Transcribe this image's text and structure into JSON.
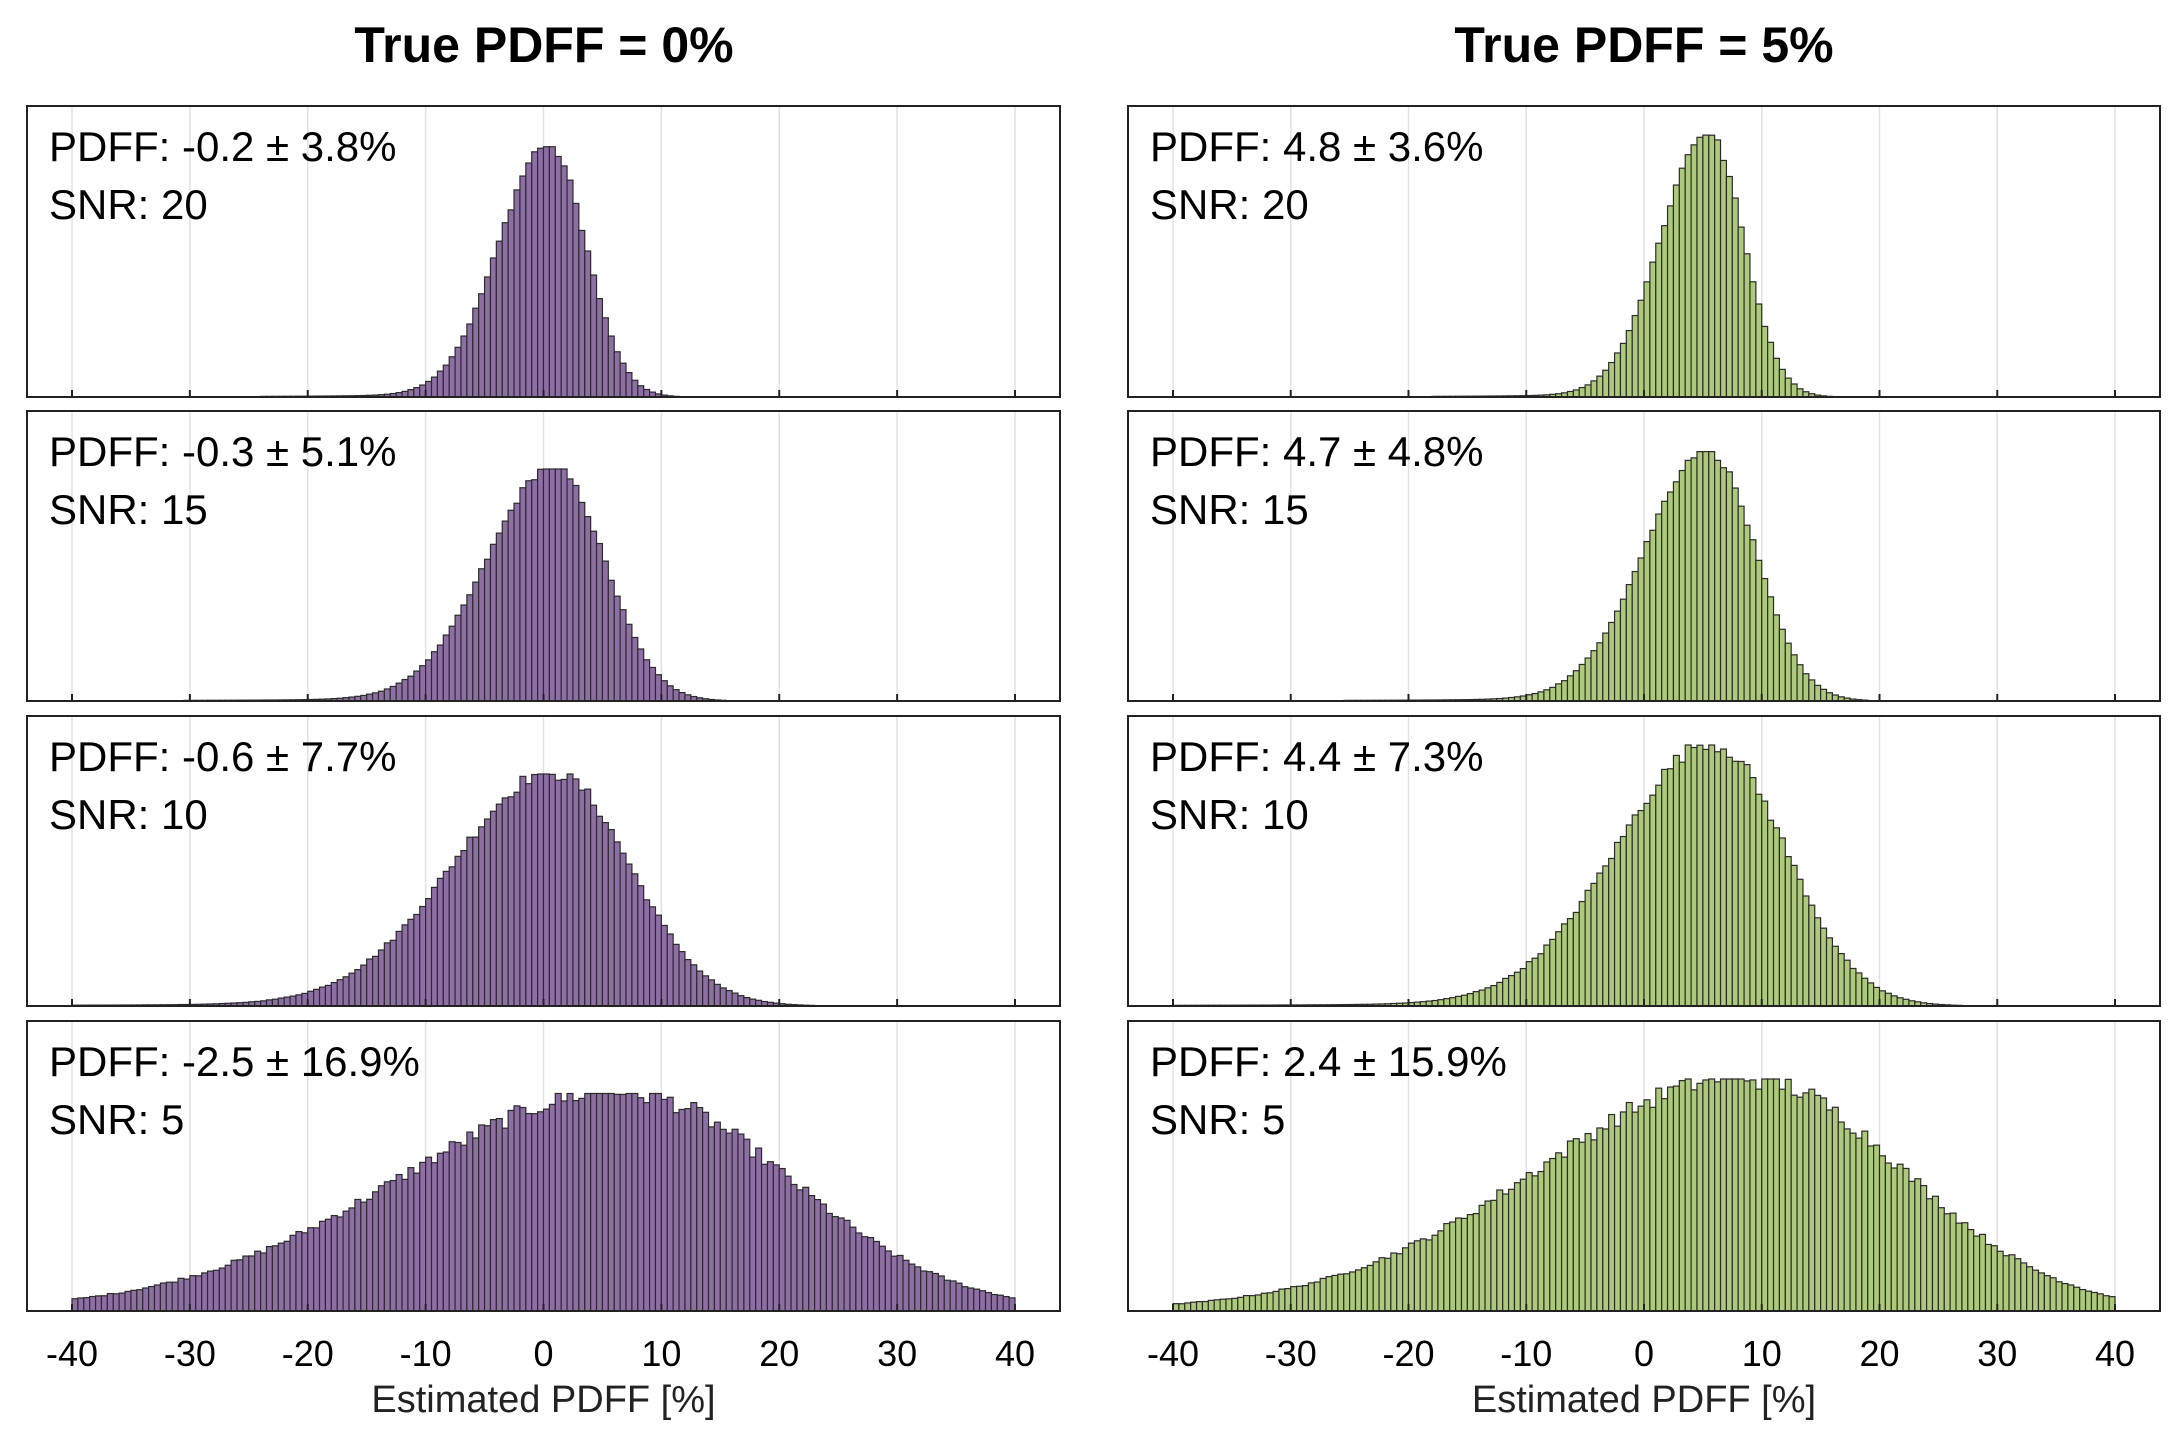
{
  "figure": {
    "xlabel": "Estimated PDFF [%]",
    "xticks": [
      -40,
      -30,
      -20,
      -10,
      0,
      10,
      20,
      30,
      40
    ],
    "xlim": [
      -44,
      44
    ],
    "bin_width": 0.5
  },
  "chart_data": [
    {
      "type": "bar",
      "title": "True PDFF = 0%",
      "color": "#8e6fa5",
      "panels": [
        {
          "stat_label": "PDFF: -0.2 ± 3.8%",
          "snr_label": "SNR: 20",
          "mean": -0.2,
          "sd": 3.8,
          "peak_x": 0.5,
          "ylim_fraction": 0.86
        },
        {
          "stat_label": "PDFF: -0.3 ± 5.1%",
          "snr_label": "SNR: 15",
          "mean": -0.3,
          "sd": 5.1,
          "peak_x": 1.0,
          "ylim_fraction": 0.8
        },
        {
          "stat_label": "PDFF: -0.6 ± 7.7%",
          "snr_label": "SNR: 10",
          "mean": -0.6,
          "sd": 7.7,
          "peak_x": 1.0,
          "ylim_fraction": 0.8
        },
        {
          "stat_label": "PDFF: -2.5 ± 16.9%",
          "snr_label": "SNR: 5",
          "mean": -2.5,
          "sd": 16.9,
          "peak_x": 7.0,
          "ylim_fraction": 0.75
        }
      ]
    },
    {
      "type": "bar",
      "title": "True PDFF = 5%",
      "color": "#adc97a",
      "panels": [
        {
          "stat_label": "PDFF: 4.8 ± 3.6%",
          "snr_label": "SNR: 20",
          "mean": 4.8,
          "sd": 3.6,
          "peak_x": 5.5,
          "ylim_fraction": 0.9
        },
        {
          "stat_label": "PDFF: 4.7 ± 4.8%",
          "snr_label": "SNR: 15",
          "mean": 4.7,
          "sd": 4.8,
          "peak_x": 5.5,
          "ylim_fraction": 0.86
        },
        {
          "stat_label": "PDFF: 4.4 ± 7.3%",
          "snr_label": "SNR: 10",
          "mean": 4.4,
          "sd": 7.3,
          "peak_x": 6.0,
          "ylim_fraction": 0.9
        },
        {
          "stat_label": "PDFF: 2.4 ± 15.9%",
          "snr_label": "SNR: 5",
          "mean": 2.4,
          "sd": 15.9,
          "peak_x": 9.0,
          "ylim_fraction": 0.8
        }
      ]
    }
  ]
}
